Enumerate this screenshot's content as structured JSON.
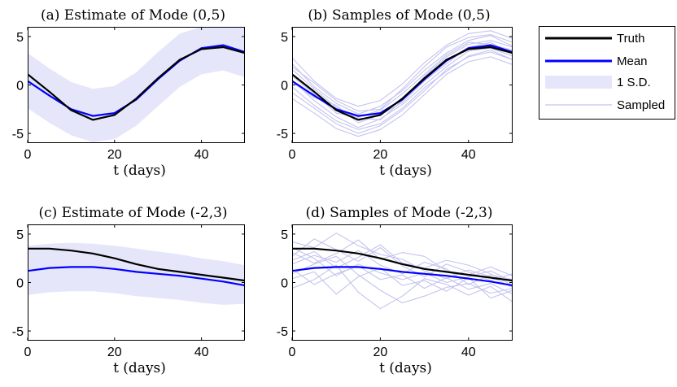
{
  "colors": {
    "truth": "#000000",
    "mean": "#0000ff",
    "band": "#e6e6fa",
    "sampled": "#c3c3f0"
  },
  "legend": {
    "entries": [
      "Truth",
      "Mean",
      "1 S.D.",
      "Sampled"
    ]
  },
  "chart_data": [
    {
      "type": "line",
      "title": "(a) Estimate of Mode (0,5)",
      "xlabel": "t (days)",
      "ylabel": "",
      "xlim": [
        0,
        50
      ],
      "ylim": [
        -6,
        6
      ],
      "xticks": [
        "0",
        "20",
        "40"
      ],
      "yticks": [
        "5",
        "0",
        "-5"
      ],
      "x": [
        0,
        5,
        10,
        15,
        20,
        25,
        30,
        35,
        40,
        45,
        50
      ],
      "series": [
        {
          "name": "Truth",
          "values": [
            1.1,
            -0.7,
            -2.6,
            -3.6,
            -3.1,
            -1.4,
            0.7,
            2.6,
            3.7,
            3.9,
            3.3
          ]
        },
        {
          "name": "Mean",
          "values": [
            0.4,
            -1.1,
            -2.5,
            -3.2,
            -2.9,
            -1.5,
            0.6,
            2.5,
            3.8,
            4.1,
            3.4
          ]
        }
      ],
      "band": {
        "lower": [
          -2.4,
          -3.9,
          -5.2,
          -5.9,
          -5.6,
          -4.2,
          -2.2,
          -0.2,
          1.1,
          1.5,
          0.8
        ],
        "upper": [
          3.3,
          1.7,
          0.3,
          -0.4,
          -0.1,
          1.3,
          3.4,
          5.3,
          6.0,
          6.0,
          5.9
        ]
      }
    },
    {
      "type": "line",
      "title": "(b) Samples of Mode (0,5)",
      "xlabel": "t (days)",
      "ylabel": "",
      "xlim": [
        0,
        50
      ],
      "ylim": [
        -6,
        6
      ],
      "xticks": [
        "0",
        "20",
        "40"
      ],
      "yticks": [
        "5",
        "0",
        "-5"
      ],
      "x": [
        0,
        5,
        10,
        15,
        20,
        25,
        30,
        35,
        40,
        45,
        50
      ],
      "series": [
        {
          "name": "Truth",
          "values": [
            1.1,
            -0.7,
            -2.6,
            -3.6,
            -3.1,
            -1.4,
            0.7,
            2.6,
            3.7,
            3.9,
            3.3
          ]
        },
        {
          "name": "Mean",
          "values": [
            0.4,
            -1.1,
            -2.5,
            -3.2,
            -2.9,
            -1.5,
            0.6,
            2.5,
            3.8,
            4.1,
            3.4
          ]
        }
      ],
      "samples": [
        [
          2.2,
          -0.2,
          -1.9,
          -3.0,
          -2.2,
          -0.6,
          1.5,
          3.3,
          4.6,
          5.1,
          4.0
        ],
        [
          -0.8,
          -2.4,
          -4.0,
          -5.0,
          -4.2,
          -2.6,
          -0.6,
          1.6,
          2.9,
          3.4,
          2.6
        ],
        [
          1.6,
          -0.4,
          -2.3,
          -3.4,
          -3.6,
          -1.6,
          0.9,
          2.9,
          4.2,
          4.6,
          3.9
        ],
        [
          0.5,
          -1.6,
          -3.3,
          -4.4,
          -3.5,
          -2.0,
          0.0,
          1.9,
          3.5,
          3.8,
          3.0
        ],
        [
          2.8,
          0.4,
          -1.4,
          -2.2,
          -1.6,
          0.1,
          2.3,
          4.1,
          5.3,
          5.6,
          4.8
        ],
        [
          -1.4,
          -2.9,
          -4.5,
          -5.3,
          -4.6,
          -3.1,
          -1.0,
          1.1,
          2.4,
          2.9,
          2.1
        ],
        [
          0.9,
          -0.9,
          -2.9,
          -3.3,
          -2.6,
          -0.9,
          1.1,
          3.1,
          4.4,
          4.2,
          3.6
        ],
        [
          1.9,
          0.2,
          -1.6,
          -2.7,
          -2.5,
          -0.4,
          1.9,
          3.9,
          4.9,
          5.2,
          4.4
        ],
        [
          -0.2,
          -2.1,
          -3.7,
          -4.6,
          -4.0,
          -2.4,
          -0.3,
          1.4,
          3.0,
          3.6,
          2.6
        ],
        [
          0.3,
          -1.3,
          -2.1,
          -3.9,
          -3.1,
          -1.8,
          0.4,
          2.2,
          3.9,
          4.4,
          3.2
        ]
      ]
    },
    {
      "type": "line",
      "title": "(c) Estimate of Mode (-2,3)",
      "xlabel": "t (days)",
      "ylabel": "",
      "xlim": [
        0,
        50
      ],
      "ylim": [
        -6,
        6
      ],
      "xticks": [
        "0",
        "20",
        "40"
      ],
      "yticks": [
        "5",
        "0",
        "-5"
      ],
      "x": [
        0,
        5,
        10,
        15,
        20,
        25,
        30,
        35,
        40,
        45,
        50
      ],
      "series": [
        {
          "name": "Truth",
          "values": [
            3.5,
            3.5,
            3.3,
            3.0,
            2.5,
            1.9,
            1.4,
            1.1,
            0.8,
            0.5,
            0.2
          ]
        },
        {
          "name": "Mean",
          "values": [
            1.2,
            1.5,
            1.6,
            1.6,
            1.4,
            1.1,
            0.9,
            0.7,
            0.4,
            0.1,
            -0.3
          ]
        }
      ],
      "band": {
        "lower": [
          -1.3,
          -1.0,
          -0.9,
          -0.9,
          -1.1,
          -1.4,
          -1.6,
          -1.8,
          -2.1,
          -2.3,
          -2.2
        ],
        "upper": [
          3.8,
          4.0,
          4.1,
          4.0,
          3.8,
          3.5,
          3.2,
          2.9,
          2.5,
          2.2,
          1.8
        ]
      }
    },
    {
      "type": "line",
      "title": "(d) Samples of Mode (-2,3)",
      "xlabel": "t (days)",
      "ylabel": "",
      "xlim": [
        0,
        50
      ],
      "ylim": [
        -6,
        6
      ],
      "xticks": [
        "0",
        "20",
        "40"
      ],
      "yticks": [
        "5",
        "0",
        "-5"
      ],
      "x": [
        0,
        5,
        10,
        15,
        20,
        25,
        30,
        35,
        40,
        45,
        50
      ],
      "series": [
        {
          "name": "Truth",
          "values": [
            3.5,
            3.5,
            3.3,
            3.0,
            2.5,
            1.9,
            1.4,
            1.1,
            0.8,
            0.5,
            0.2
          ]
        },
        {
          "name": "Mean",
          "values": [
            1.2,
            1.5,
            1.6,
            1.6,
            1.4,
            1.1,
            0.9,
            0.7,
            0.4,
            0.1,
            -0.3
          ]
        }
      ],
      "samples": [
        [
          4.2,
          3.6,
          5.1,
          3.8,
          2.9,
          2.4,
          1.2,
          0.4,
          1.3,
          0.6,
          -0.5
        ],
        [
          1.9,
          2.8,
          2.1,
          3.3,
          1.8,
          0.9,
          2.1,
          1.4,
          -0.2,
          0.8,
          0.3
        ],
        [
          0.4,
          1.1,
          -1.2,
          0.6,
          1.5,
          -0.3,
          0.2,
          -0.9,
          0.5,
          -1.6,
          -0.8
        ],
        [
          2.7,
          4.5,
          3.4,
          2.2,
          3.6,
          1.7,
          0.6,
          1.9,
          1.1,
          0.2,
          0.9
        ],
        [
          -0.6,
          0.3,
          1.8,
          -1.0,
          -2.7,
          -1.4,
          0.4,
          -0.2,
          -1.3,
          -0.4,
          -2.0
        ],
        [
          3.1,
          2.0,
          3.0,
          4.4,
          2.4,
          3.1,
          2.7,
          1.2,
          0.8,
          1.6,
          0.7
        ],
        [
          1.4,
          -0.2,
          0.9,
          1.7,
          0.3,
          0.8,
          -0.6,
          0.5,
          -0.7,
          -0.1,
          -1.2
        ],
        [
          2.3,
          3.2,
          1.5,
          2.6,
          3.9,
          2.0,
          1.5,
          2.3,
          1.8,
          0.9,
          -0.3
        ],
        [
          0.9,
          1.9,
          2.7,
          0.8,
          -0.8,
          -2.1,
          -1.4,
          -0.5,
          -0.1,
          -1.1,
          -0.6
        ],
        [
          3.6,
          2.5,
          0.7,
          1.9,
          1.0,
          0.3,
          1.0,
          0.0,
          0.6,
          1.2,
          0.1
        ]
      ]
    }
  ]
}
